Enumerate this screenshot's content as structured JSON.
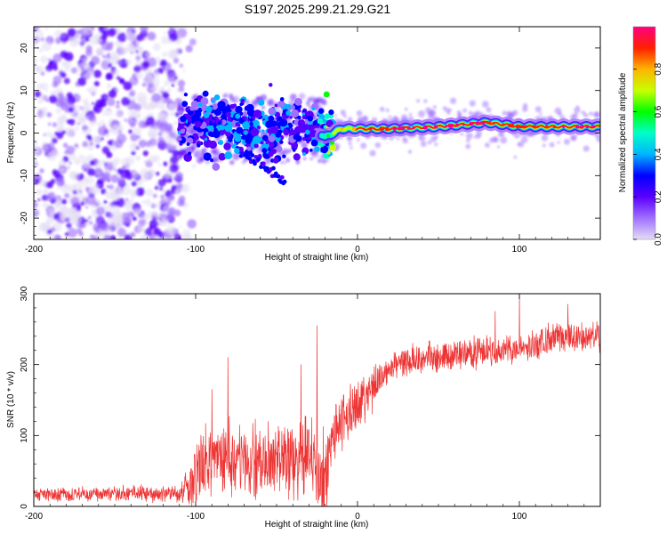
{
  "title": "S197.2025.299.21.29.G21",
  "chart_data": [
    {
      "type": "heatmap",
      "xlabel": "Height of straight line (km)",
      "ylabel": "Frequency (Hz)",
      "xlim": [
        -200,
        150
      ],
      "ylim": [
        -25,
        25
      ],
      "x_ticks": [
        -200,
        -100,
        0,
        100
      ],
      "y_ticks": [
        -20,
        -10,
        0,
        10,
        20
      ],
      "colorbar": {
        "label": "Normalized spectral amplitude",
        "range": [
          0,
          1
        ],
        "ticks": [
          "0.0",
          "0.2",
          "0.4",
          "0.6",
          "0.8"
        ],
        "colormap": [
          "#e4dcf4",
          "#a070ff",
          "#5a00ff",
          "#0000ff",
          "#00b4ff",
          "#00ffc8",
          "#00ff00",
          "#c8ff00",
          "#ffb400",
          "#ff2000",
          "#ff0080"
        ]
      },
      "ridge": {
        "description_points": [
          {
            "x": -105,
            "f": 1.5,
            "a": 0.3
          },
          {
            "x": -80,
            "f": 2.5,
            "a": 0.35
          },
          {
            "x": -60,
            "f": 0.0,
            "a": 0.35
          },
          {
            "x": -40,
            "f": 2.0,
            "a": 0.3
          },
          {
            "x": -25,
            "f": 0.5,
            "a": 0.4
          },
          {
            "x": -20,
            "f": -1.0,
            "a": 0.55
          },
          {
            "x": -10,
            "f": 1.0,
            "a": 0.75
          },
          {
            "x": 0,
            "f": 1.0,
            "a": 0.85
          },
          {
            "x": 20,
            "f": 1.0,
            "a": 0.95
          },
          {
            "x": 50,
            "f": 1.5,
            "a": 1.0
          },
          {
            "x": 80,
            "f": 2.5,
            "a": 0.95
          },
          {
            "x": 90,
            "f": 2.0,
            "a": 0.9
          },
          {
            "x": 100,
            "f": 1.5,
            "a": 0.9
          },
          {
            "x": 150,
            "f": 1.5,
            "a": 1.0
          }
        ],
        "secondary_track": [
          {
            "x": -75,
            "f": -4.0
          },
          {
            "x": -60,
            "f": -7.0
          },
          {
            "x": -45,
            "f": -12.0
          }
        ]
      }
    },
    {
      "type": "line",
      "xlabel": "Height of straight line (km)",
      "ylabel": "SNR (10 * v/v)",
      "xlim": [
        -200,
        150
      ],
      "ylim": [
        0,
        300
      ],
      "x_ticks": [
        -200,
        -100,
        0,
        100
      ],
      "y_ticks": [
        0,
        100,
        200,
        300
      ],
      "series": [
        {
          "name": "SNR",
          "color": "#ee3333",
          "trend_x": [
            -200,
            -110,
            -105,
            -95,
            -80,
            -60,
            -40,
            -30,
            -20,
            -15,
            -5,
            5,
            15,
            25,
            40,
            60,
            80,
            100,
            120,
            150
          ],
          "trend_y": [
            17,
            18,
            30,
            60,
            65,
            60,
            62,
            75,
            35,
            100,
            130,
            160,
            185,
            200,
            210,
            212,
            220,
            220,
            235,
            240
          ],
          "noise_amp_x": [
            -200,
            -110,
            -100,
            -20,
            -15,
            0,
            20,
            150
          ],
          "noise_amp_y": [
            10,
            12,
            50,
            60,
            45,
            35,
            20,
            22
          ],
          "spikes": [
            {
              "x": -90,
              "y": 165
            },
            {
              "x": -80,
              "y": 210
            },
            {
              "x": -25,
              "y": 255
            },
            {
              "x": -35,
              "y": 200
            },
            {
              "x": 100,
              "y": 298
            },
            {
              "x": 85,
              "y": 275
            },
            {
              "x": 130,
              "y": 285
            }
          ]
        }
      ]
    }
  ]
}
